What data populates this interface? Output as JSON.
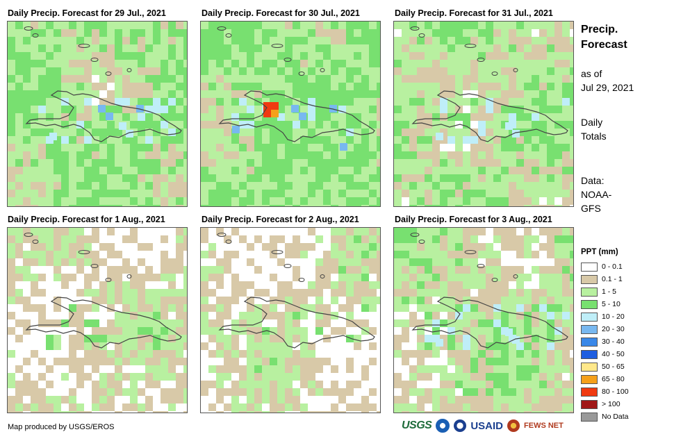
{
  "panels": [
    {
      "title": "Daily Precip. Forecast for 29 Jul., 2021",
      "bias": 1.2,
      "seed": 11,
      "highlights": [
        [
          "c3",
          "light-blue"
        ],
        [
          "c2",
          "lighter-blue"
        ]
      ]
    },
    {
      "title": "Daily Precip. Forecast for 30 Jul., 2021",
      "bias": 1.4,
      "seed": 23,
      "highlights": [
        [
          "c10",
          "red"
        ],
        [
          "c9",
          "orange"
        ],
        [
          "c3",
          "light-blue"
        ],
        [
          "c4",
          "light-blue"
        ]
      ]
    },
    {
      "title": "Daily Precip. Forecast for 31 Jul., 2021",
      "bias": 1.0,
      "seed": 37,
      "highlights": [
        [
          "c2",
          "lighter-blue"
        ]
      ]
    },
    {
      "title": "Daily Precip. Forecast for 1 Aug., 2021",
      "bias": 0.45,
      "seed": 41,
      "highlights": []
    },
    {
      "title": "Daily Precip. Forecast for 2 Aug., 2021",
      "bias": 0.45,
      "seed": 53,
      "highlights": []
    },
    {
      "title": "Daily Precip. Forecast for 3 Aug., 2021",
      "bias": 0.85,
      "seed": 67,
      "highlights": [
        [
          "c2",
          "lighter-blue"
        ]
      ]
    }
  ],
  "side": {
    "title_line1": "Precip.",
    "title_line2": "Forecast",
    "asof_line1": "as of",
    "asof_line2": "Jul 29, 2021",
    "daily_line1": "Daily",
    "daily_line2": "Totals",
    "data_line1": "Data:",
    "data_line2": "NOAA-",
    "data_line3": "GFS"
  },
  "legend": {
    "title": "PPT (mm)",
    "items": [
      {
        "label": "0 - 0.1",
        "color": "#ffffff"
      },
      {
        "label": "0.1 - 1",
        "color": "#d8c9a8"
      },
      {
        "label": "1 - 5",
        "color": "#b8f0a0"
      },
      {
        "label": "5 - 10",
        "color": "#78e070"
      },
      {
        "label": "10 - 20",
        "color": "#bfeef8"
      },
      {
        "label": "20 - 30",
        "color": "#78b8f0"
      },
      {
        "label": "30 - 40",
        "color": "#3a88e8"
      },
      {
        "label": "40 - 50",
        "color": "#1f5ee0"
      },
      {
        "label": "50 - 65",
        "color": "#ffe88a"
      },
      {
        "label": "65 - 80",
        "color": "#f5a01a"
      },
      {
        "label": "80 - 100",
        "color": "#f03a10"
      },
      {
        "label": "> 100",
        "color": "#a01818"
      },
      {
        "label": "No Data",
        "color": "#999999"
      }
    ]
  },
  "credit": "Map produced by USGS/EROS",
  "logos": {
    "usgs": "USGS",
    "usaid": "USAID",
    "fews": "FEWS NET"
  }
}
